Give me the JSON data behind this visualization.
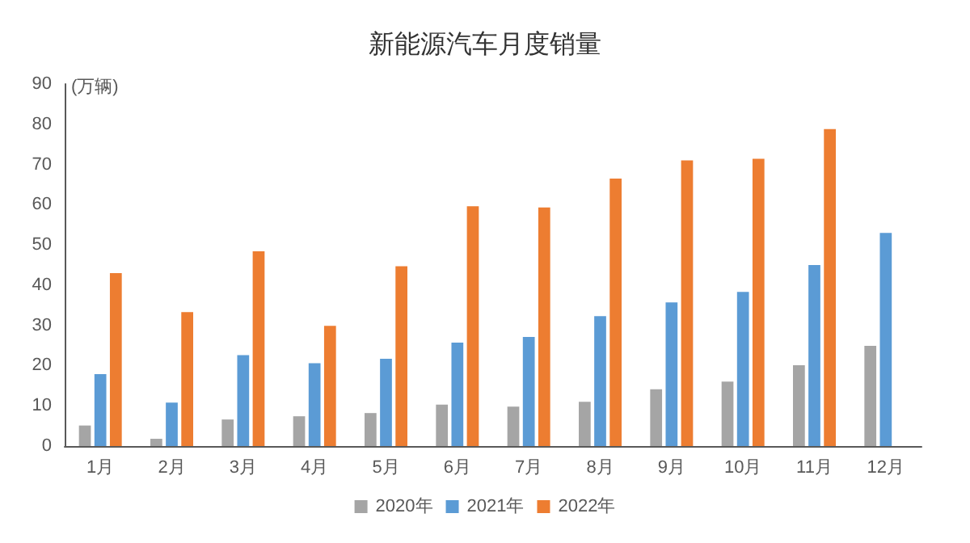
{
  "chart_data": {
    "type": "bar",
    "title": "新能源汽车月度销量",
    "ylabel": "(万辆)",
    "categories": [
      "1月",
      "2月",
      "3月",
      "4月",
      "5月",
      "6月",
      "7月",
      "8月",
      "9月",
      "10月",
      "11月",
      "12月"
    ],
    "series": [
      {
        "name": "2020年",
        "color": "#a5a5a5",
        "values": [
          5.1,
          1.8,
          6.6,
          7.4,
          8.2,
          10.3,
          9.8,
          11,
          14.1,
          16,
          20.1,
          24.9
        ]
      },
      {
        "name": "2021年",
        "color": "#5b9bd5",
        "values": [
          17.9,
          10.8,
          22.6,
          20.6,
          21.7,
          25.7,
          27.1,
          32.3,
          35.7,
          38.3,
          45,
          53
        ]
      },
      {
        "name": "2022年",
        "color": "#ed7d31",
        "values": [
          43,
          33.3,
          48.4,
          29.9,
          44.7,
          59.6,
          59.3,
          66.5,
          71,
          71.4,
          78.8,
          null
        ]
      }
    ],
    "ylim": [
      0,
      90
    ],
    "yticks": [
      0,
      10,
      20,
      30,
      40,
      50,
      60,
      70,
      80,
      90
    ],
    "grid": false,
    "legend": "bottom"
  }
}
